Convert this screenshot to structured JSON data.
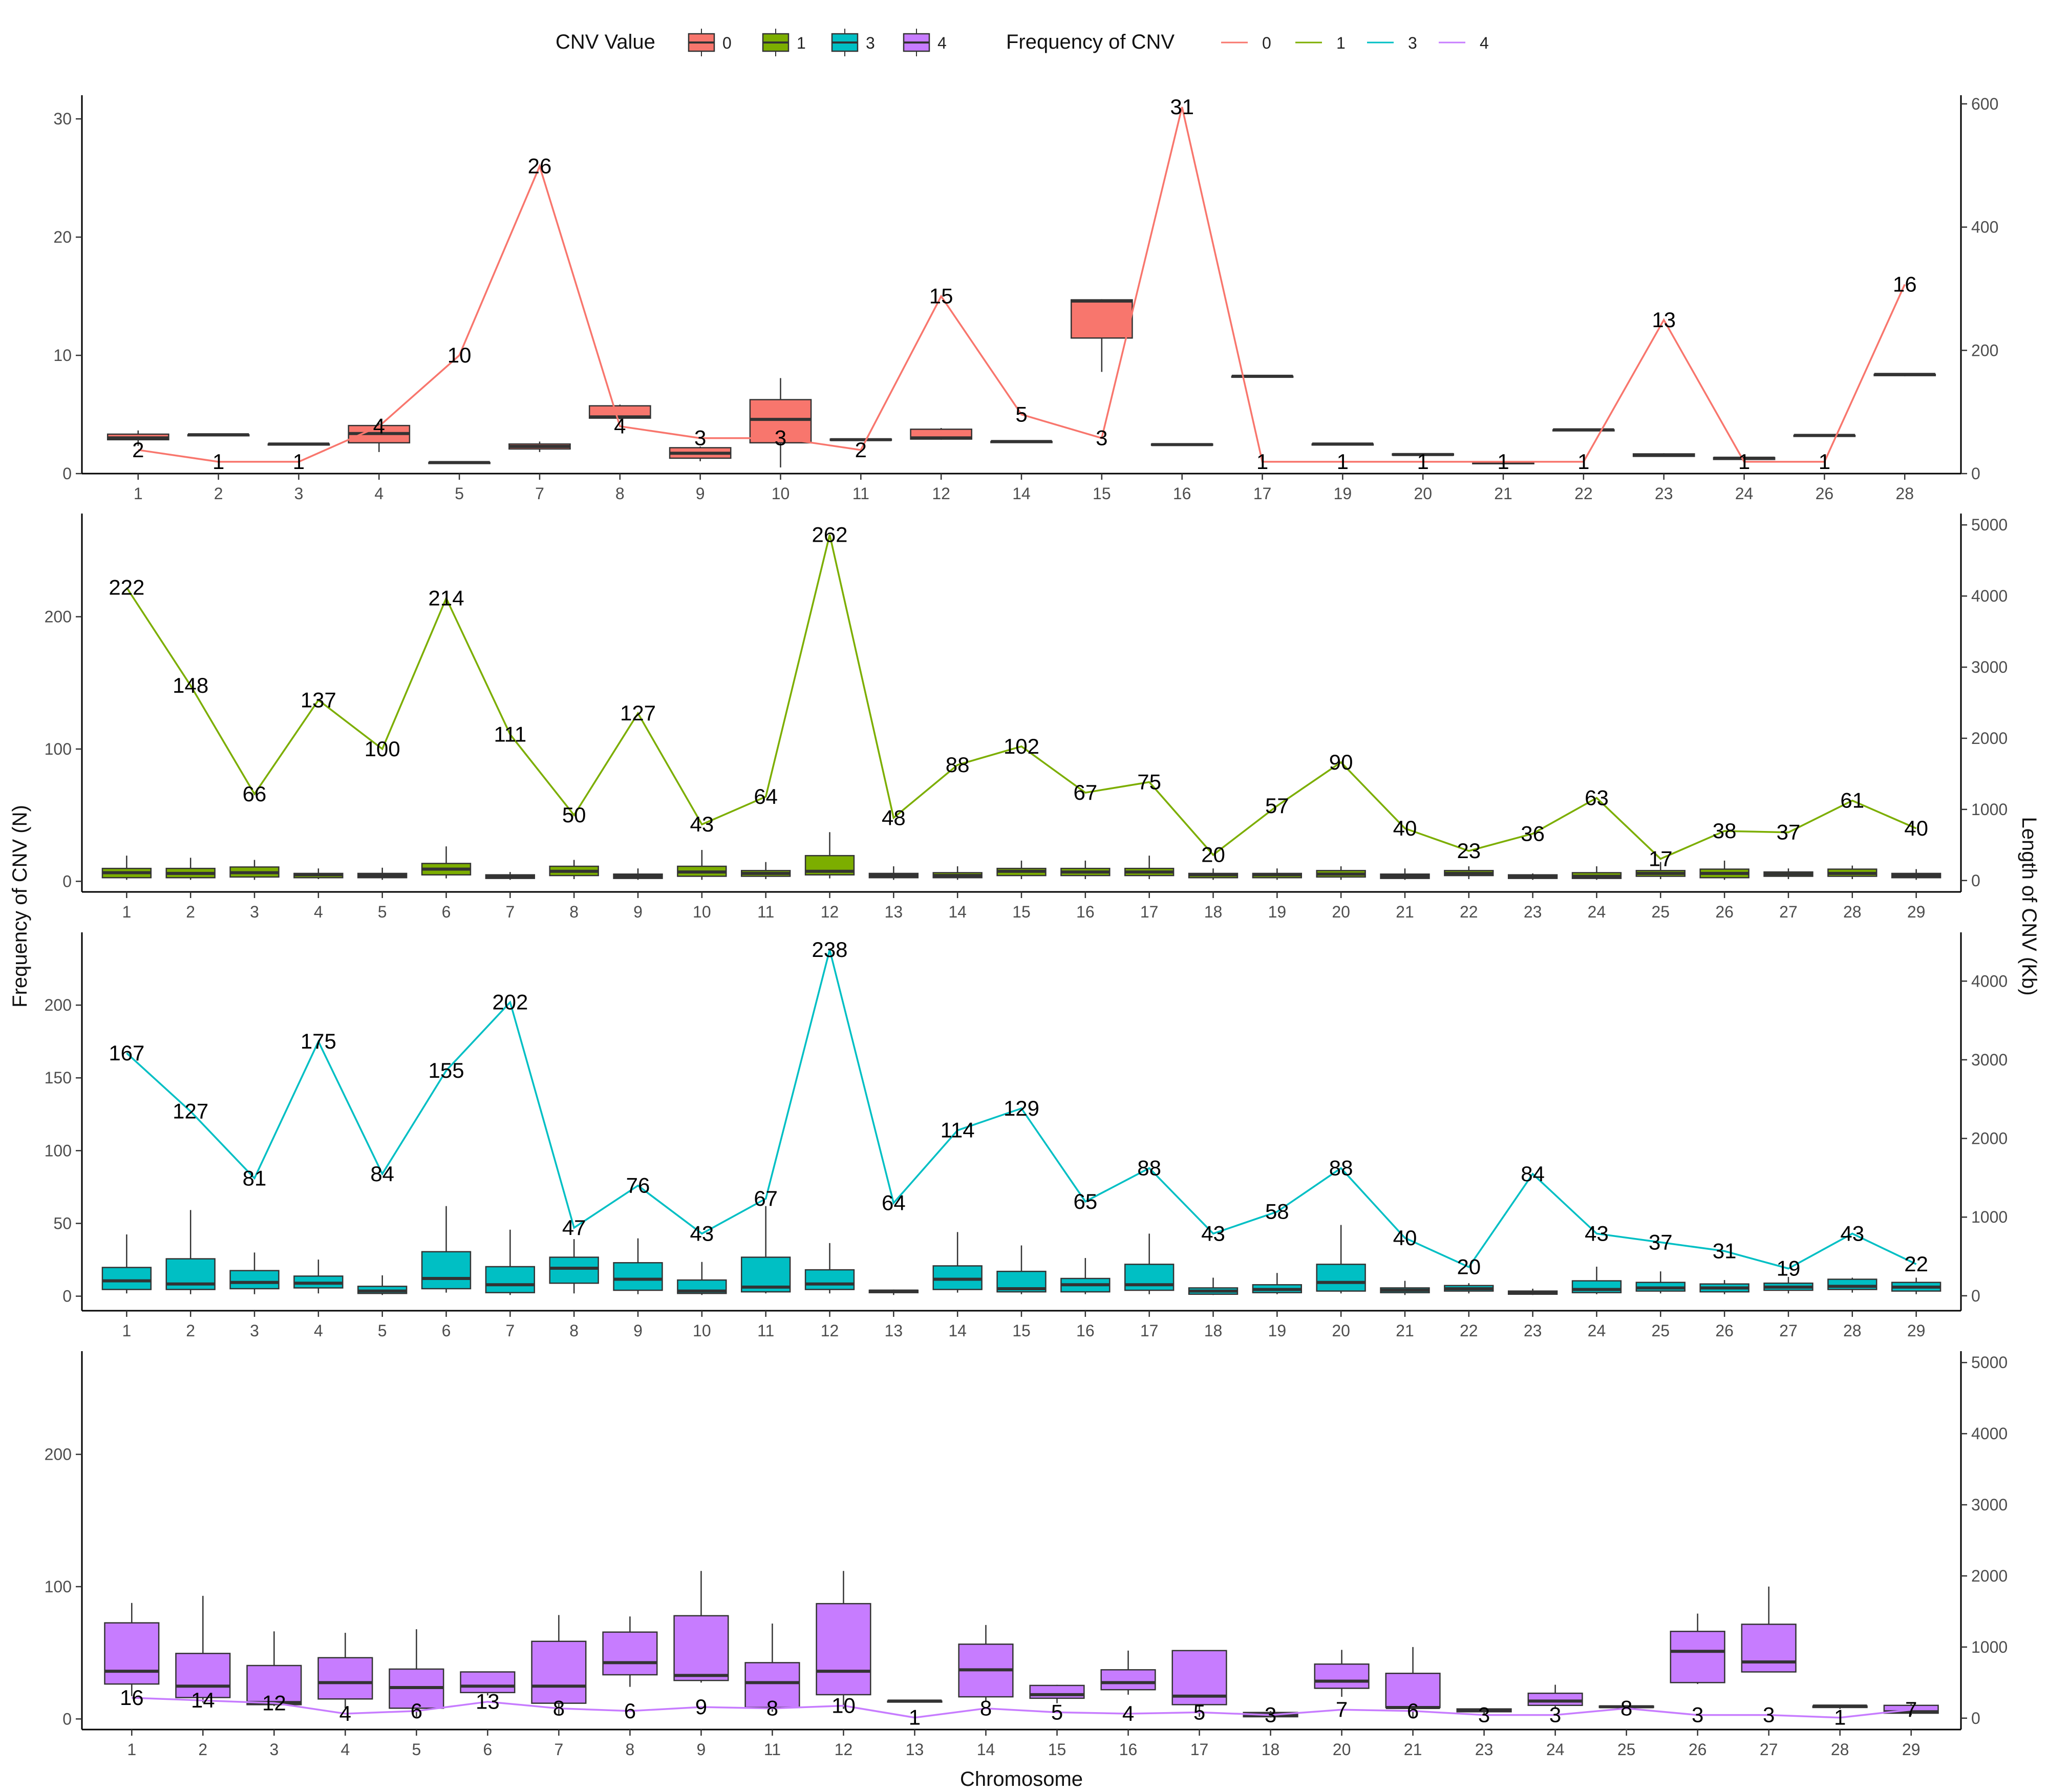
{
  "legend": {
    "box_title": "CNV Value",
    "line_title": "Frequency of CNV",
    "keys": [
      "0",
      "1",
      "3",
      "4"
    ]
  },
  "colors": {
    "0": "#F8766D",
    "1": "#7CAE00",
    "3": "#00BFC4",
    "4": "#C77CFF"
  },
  "axes": {
    "left_title": "Frequency of CNV (N)",
    "right_title": "Length of CNV (Kb)",
    "x_title": "Chromosome"
  },
  "chart_data": [
    {
      "type": "box+line",
      "cnv_value": "0",
      "categories": [
        "1",
        "2",
        "3",
        "4",
        "5",
        "7",
        "8",
        "9",
        "10",
        "11",
        "12",
        "14",
        "15",
        "16",
        "17",
        "19",
        "20",
        "21",
        "22",
        "23",
        "24",
        "26",
        "28"
      ],
      "frequency": [
        2,
        1,
        1,
        4,
        10,
        26,
        4,
        3,
        3,
        2,
        15,
        5,
        3,
        31,
        1,
        1,
        1,
        1,
        1,
        13,
        1,
        1,
        16
      ],
      "left_ylim": [
        0,
        32
      ],
      "left_ticks": [
        0,
        10,
        20,
        30
      ],
      "right_ylim": [
        0,
        614
      ],
      "right_ticks": [
        0,
        200,
        400,
        600
      ],
      "length_kb_box": [
        [
          45,
          55,
          58,
          64,
          70
        ],
        [
          62,
          62,
          63,
          63,
          63
        ],
        [
          47,
          47,
          48,
          48,
          48
        ],
        [
          35,
          50,
          65,
          78,
          82
        ],
        [
          17,
          17,
          18,
          18,
          18
        ],
        [
          35,
          40,
          44,
          48,
          52
        ],
        [
          88,
          90,
          92,
          110,
          112
        ],
        [
          20,
          25,
          33,
          42,
          44
        ],
        [
          10,
          50,
          88,
          120,
          155
        ],
        [
          54,
          54,
          55,
          56,
          57
        ],
        [
          55,
          56,
          58,
          72,
          74
        ],
        [
          51,
          51,
          52,
          52,
          53
        ],
        [
          165,
          220,
          280,
          282,
          283
        ],
        [
          45,
          46,
          47,
          48,
          48
        ],
        [
          156,
          157,
          158,
          158,
          159
        ],
        [
          47,
          47,
          48,
          48,
          49
        ],
        [
          29,
          30,
          31,
          32,
          32
        ],
        [
          14,
          16,
          18,
          18,
          20
        ],
        [
          69,
          70,
          71,
          71,
          72
        ],
        [
          27,
          28,
          30,
          32,
          33
        ],
        [
          22,
          23,
          25,
          26,
          27
        ],
        [
          60,
          61,
          62,
          62,
          63
        ],
        [
          158,
          159,
          161,
          161,
          162
        ]
      ]
    },
    {
      "type": "box+line",
      "cnv_value": "1",
      "categories": [
        "1",
        "2",
        "3",
        "4",
        "5",
        "6",
        "7",
        "8",
        "9",
        "10",
        "11",
        "12",
        "13",
        "14",
        "15",
        "16",
        "17",
        "18",
        "19",
        "20",
        "21",
        "22",
        "23",
        "24",
        "25",
        "26",
        "27",
        "28",
        "29"
      ],
      "frequency": [
        222,
        148,
        66,
        137,
        100,
        214,
        111,
        50,
        127,
        43,
        64,
        262,
        48,
        88,
        102,
        67,
        75,
        20,
        57,
        90,
        40,
        23,
        36,
        63,
        17,
        38,
        37,
        61,
        40
      ],
      "left_ylim": [
        -8,
        278
      ],
      "left_ticks": [
        0,
        100,
        200
      ],
      "right_ylim": [
        -160,
        5160
      ],
      "right_ticks": [
        0,
        1000,
        2000,
        3000,
        4000,
        5000
      ],
      "length_kb_box": [
        [
          10,
          40,
          110,
          170,
          350
        ],
        [
          10,
          40,
          100,
          170,
          320
        ],
        [
          10,
          50,
          110,
          190,
          290
        ],
        [
          20,
          40,
          80,
          100,
          170
        ],
        [
          10,
          40,
          70,
          100,
          180
        ],
        [
          30,
          80,
          160,
          240,
          480
        ],
        [
          10,
          30,
          60,
          80,
          120
        ],
        [
          20,
          70,
          130,
          200,
          290
        ],
        [
          10,
          30,
          60,
          90,
          170
        ],
        [
          10,
          60,
          120,
          200,
          430
        ],
        [
          20,
          60,
          100,
          140,
          260
        ],
        [
          30,
          80,
          130,
          350,
          680
        ],
        [
          10,
          40,
          70,
          100,
          200
        ],
        [
          10,
          40,
          70,
          110,
          200
        ],
        [
          20,
          70,
          130,
          170,
          280
        ],
        [
          20,
          70,
          120,
          170,
          280
        ],
        [
          20,
          70,
          120,
          170,
          350
        ],
        [
          10,
          40,
          80,
          100,
          170
        ],
        [
          10,
          40,
          80,
          100,
          170
        ],
        [
          10,
          50,
          90,
          140,
          200
        ],
        [
          10,
          30,
          60,
          90,
          170
        ],
        [
          20,
          70,
          100,
          140,
          200
        ],
        [
          10,
          30,
          60,
          80,
          100
        ],
        [
          10,
          30,
          60,
          110,
          200
        ],
        [
          20,
          60,
          100,
          140,
          260
        ],
        [
          10,
          40,
          100,
          160,
          280
        ],
        [
          20,
          60,
          90,
          120,
          170
        ],
        [
          20,
          60,
          100,
          160,
          210
        ],
        [
          10,
          40,
          70,
          100,
          160
        ]
      ]
    },
    {
      "type": "box+line",
      "cnv_value": "3",
      "categories": [
        "1",
        "2",
        "3",
        "4",
        "5",
        "6",
        "7",
        "8",
        "9",
        "10",
        "11",
        "12",
        "13",
        "14",
        "15",
        "16",
        "17",
        "18",
        "19",
        "20",
        "21",
        "22",
        "23",
        "24",
        "25",
        "26",
        "27",
        "28",
        "29"
      ],
      "frequency": [
        167,
        127,
        81,
        175,
        84,
        155,
        202,
        47,
        76,
        43,
        67,
        238,
        64,
        114,
        129,
        65,
        88,
        43,
        58,
        88,
        40,
        20,
        84,
        43,
        37,
        31,
        19,
        43,
        22
      ],
      "left_ylim": [
        -10,
        250
      ],
      "left_ticks": [
        0,
        50,
        100,
        150,
        200
      ],
      "right_ylim": [
        -190,
        4620
      ],
      "right_ticks": [
        0,
        1000,
        2000,
        3000,
        4000
      ],
      "length_kb_box": [
        [
          30,
          80,
          190,
          360,
          780
        ],
        [
          20,
          80,
          150,
          470,
          1090
        ],
        [
          20,
          90,
          170,
          320,
          550
        ],
        [
          30,
          100,
          160,
          250,
          460
        ],
        [
          10,
          30,
          60,
          120,
          260
        ],
        [
          40,
          90,
          220,
          560,
          1140
        ],
        [
          10,
          40,
          140,
          370,
          840
        ],
        [
          30,
          160,
          350,
          490,
          720
        ],
        [
          20,
          70,
          210,
          420,
          730
        ],
        [
          10,
          30,
          60,
          200,
          430
        ],
        [
          30,
          50,
          110,
          490,
          1140
        ],
        [
          30,
          80,
          150,
          330,
          670
        ],
        [
          10,
          40,
          60,
          70,
          80
        ],
        [
          40,
          80,
          210,
          380,
          810
        ],
        [
          20,
          50,
          90,
          310,
          640
        ],
        [
          20,
          50,
          140,
          220,
          480
        ],
        [
          20,
          70,
          140,
          400,
          790
        ],
        [
          10,
          20,
          60,
          100,
          230
        ],
        [
          20,
          40,
          80,
          140,
          290
        ],
        [
          30,
          60,
          170,
          400,
          900
        ],
        [
          10,
          40,
          70,
          100,
          190
        ],
        [
          30,
          60,
          90,
          130,
          160
        ],
        [
          10,
          20,
          40,
          60,
          90
        ],
        [
          20,
          40,
          80,
          190,
          370
        ],
        [
          30,
          60,
          100,
          170,
          310
        ],
        [
          20,
          50,
          100,
          150,
          200
        ],
        [
          30,
          70,
          110,
          160,
          240
        ],
        [
          40,
          80,
          120,
          210,
          230
        ],
        [
          20,
          60,
          110,
          170,
          230
        ]
      ]
    },
    {
      "type": "box+line",
      "cnv_value": "4",
      "categories": [
        "1",
        "2",
        "3",
        "4",
        "5",
        "6",
        "7",
        "8",
        "9",
        "11",
        "12",
        "13",
        "14",
        "15",
        "16",
        "17",
        "18",
        "20",
        "21",
        "23",
        "24",
        "25",
        "26",
        "27",
        "28",
        "29"
      ],
      "frequency": [
        16,
        14,
        12,
        4,
        6,
        13,
        8,
        6,
        9,
        8,
        10,
        1,
        8,
        5,
        4,
        5,
        3,
        7,
        6,
        3,
        3,
        8,
        3,
        3,
        1,
        7
      ],
      "left_ylim": [
        -8,
        278
      ],
      "left_ticks": [
        0,
        100,
        200
      ],
      "right_ylim": [
        -160,
        5160
      ],
      "right_ticks": [
        0,
        1000,
        2000,
        3000,
        4000,
        5000
      ],
      "length_kb_box": [
        [
          310,
          480,
          660,
          1340,
          1620
        ],
        [
          220,
          290,
          450,
          910,
          1720
        ],
        [
          170,
          190,
          220,
          740,
          1220
        ],
        [
          140,
          270,
          500,
          850,
          1200
        ],
        [
          20,
          140,
          430,
          690,
          1250
        ],
        [
          320,
          360,
          450,
          650,
          650
        ],
        [
          50,
          210,
          450,
          1080,
          1450
        ],
        [
          440,
          610,
          780,
          1210,
          1430
        ],
        [
          500,
          530,
          600,
          1440,
          2070
        ],
        [
          90,
          150,
          500,
          780,
          1330
        ],
        [
          130,
          330,
          660,
          1610,
          2070
        ],
        [
          230,
          230,
          240,
          240,
          250
        ],
        [
          230,
          300,
          680,
          1040,
          1310
        ],
        [
          210,
          280,
          330,
          460,
          470
        ],
        [
          330,
          400,
          500,
          680,
          950
        ],
        [
          20,
          190,
          310,
          950,
          950
        ],
        [
          10,
          20,
          50,
          80,
          100
        ],
        [
          300,
          420,
          520,
          760,
          960
        ],
        [
          10,
          150,
          150,
          630,
          1000
        ],
        [
          50,
          90,
          110,
          130,
          140
        ],
        [
          130,
          180,
          240,
          350,
          470
        ],
        [
          130,
          150,
          160,
          170,
          180
        ],
        [
          480,
          500,
          940,
          1220,
          1470
        ],
        [
          650,
          650,
          790,
          1320,
          1850
        ],
        [
          130,
          150,
          170,
          170,
          180
        ],
        [
          40,
          70,
          90,
          180,
          200
        ]
      ]
    }
  ]
}
